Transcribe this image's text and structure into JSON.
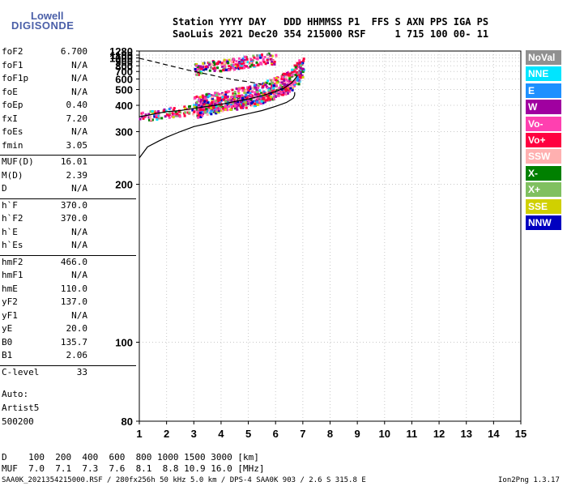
{
  "logo": {
    "line1": "Lowell",
    "line2": "DIGISONDE"
  },
  "header": {
    "row1": "Station YYYY DAY   DDD HHMMSS P1  FFS S AXN PPS IGA PS",
    "row2": "SaoLuis 2021 Dec20 354 215000 RSF     1 715 100 00- 11"
  },
  "params": [
    {
      "label": "foF2",
      "value": "6.700"
    },
    {
      "label": "foF1",
      "value": "N/A"
    },
    {
      "label": "foF1p",
      "value": "N/A"
    },
    {
      "label": "foE",
      "value": "N/A"
    },
    {
      "label": "foEp",
      "value": "0.40"
    },
    {
      "label": "fxI",
      "value": "7.20"
    },
    {
      "label": "foEs",
      "value": "N/A"
    },
    {
      "label": "fmin",
      "value": "3.05"
    },
    {
      "label": "MUF(D)",
      "value": "16.01"
    },
    {
      "label": "M(D)",
      "value": "2.39"
    },
    {
      "label": "D",
      "value": "N/A"
    },
    {
      "label": "h`F",
      "value": "370.0"
    },
    {
      "label": "h`F2",
      "value": "370.0"
    },
    {
      "label": "h`E",
      "value": "N/A"
    },
    {
      "label": "h`Es",
      "value": "N/A"
    },
    {
      "label": "hmF2",
      "value": "466.0"
    },
    {
      "label": "hmF1",
      "value": "N/A"
    },
    {
      "label": "hmE",
      "value": "110.0"
    },
    {
      "label": "yF2",
      "value": "137.0"
    },
    {
      "label": "yF1",
      "value": "N/A"
    },
    {
      "label": "yE",
      "value": "20.0"
    },
    {
      "label": "B0",
      "value": "135.7"
    },
    {
      "label": "B1",
      "value": "2.06"
    },
    {
      "label": "C-level",
      "value": "33"
    }
  ],
  "auto": {
    "line1": "Auto:",
    "line2": "Artist5",
    "line3": "500200"
  },
  "legend": [
    {
      "label": "NoVal",
      "bg": "#909090",
      "fg": "#ffffff"
    },
    {
      "label": "NNE",
      "bg": "#00e5ff",
      "fg": "#ffffff"
    },
    {
      "label": "E",
      "bg": "#1e90ff",
      "fg": "#ffffff"
    },
    {
      "label": "W",
      "bg": "#a000a0",
      "fg": "#ffffff"
    },
    {
      "label": "Vo-",
      "bg": "#ff40b0",
      "fg": "#ffffff"
    },
    {
      "label": "Vo+",
      "bg": "#ff0040",
      "fg": "#ffffff"
    },
    {
      "label": "SSW",
      "bg": "#ffb0b0",
      "fg": "#ffffff"
    },
    {
      "label": "X-",
      "bg": "#008000",
      "fg": "#ffffff"
    },
    {
      "label": "X+",
      "bg": "#80c060",
      "fg": "#ffffff"
    },
    {
      "label": "SSE",
      "bg": "#d0d000",
      "fg": "#ffffff"
    },
    {
      "label": "NNW",
      "bg": "#0000c0",
      "fg": "#ffffff"
    }
  ],
  "bottom": {
    "row1": "D    100  200  400  600  800 1000 1500 3000 [km]",
    "row2": "MUF  7.0  7.1  7.3  7.6  8.1  8.8 10.9 16.0 [MHz]",
    "footer_left": "SAA0K_2021354215000.RSF / 280fx256h 50 kHz 5.0 km / DPS-4 SAA0K 903 / 2.6 S 315.8 E",
    "footer_right": "Ion2Png 1.3.17"
  },
  "chart_data": {
    "type": "scatter",
    "xlim": [
      1,
      15
    ],
    "ylim": [
      80,
      1280
    ],
    "y_scale": "reciprocal",
    "x_ticks": [
      1,
      2,
      3,
      4,
      5,
      6,
      7,
      8,
      9,
      10,
      11,
      12,
      13,
      14,
      15
    ],
    "y_ticks": [
      80,
      100,
      200,
      300,
      400,
      500,
      600,
      700,
      800,
      900,
      1000,
      1100,
      1280
    ],
    "grid": true,
    "trace_ordinary": {
      "x": [
        1.0,
        1.3,
        1.6,
        2.0,
        2.5,
        3.0,
        3.5,
        4.0,
        4.5,
        5.0,
        5.5,
        6.0,
        6.3,
        6.6,
        6.8
      ],
      "y": [
        350,
        355,
        362,
        370,
        375,
        385,
        395,
        405,
        420,
        435,
        455,
        485,
        510,
        560,
        640
      ]
    },
    "profile": {
      "x": [
        1.0,
        1.3,
        1.7,
        2.0,
        2.5,
        3.0,
        3.5,
        4.0,
        4.5,
        5.0,
        5.5,
        6.0,
        6.4,
        6.65,
        6.7,
        6.7
      ],
      "y": [
        240,
        262,
        275,
        285,
        300,
        315,
        325,
        338,
        350,
        362,
        375,
        395,
        415,
        440,
        460,
        480
      ]
    },
    "dashed_curve": {
      "x": [
        1.0,
        1.5,
        2.0,
        2.5,
        3.0,
        3.5,
        4.0,
        4.5,
        5.0,
        5.5
      ],
      "y": [
        990,
        900,
        820,
        755,
        700,
        660,
        620,
        590,
        570,
        545
      ]
    },
    "x_layer_trace": {
      "x": [
        3.0,
        3.5,
        4.0,
        4.5,
        5.0,
        5.5,
        6.0
      ],
      "y": [
        750,
        790,
        830,
        870,
        920,
        970,
        1030
      ]
    },
    "vo_band": {
      "x": [
        3.0,
        3.5,
        4.0,
        4.5,
        5.0,
        5.5,
        6.0,
        6.4,
        6.7,
        7.0
      ],
      "y": [
        395,
        410,
        425,
        440,
        455,
        480,
        520,
        570,
        650,
        790
      ]
    }
  }
}
